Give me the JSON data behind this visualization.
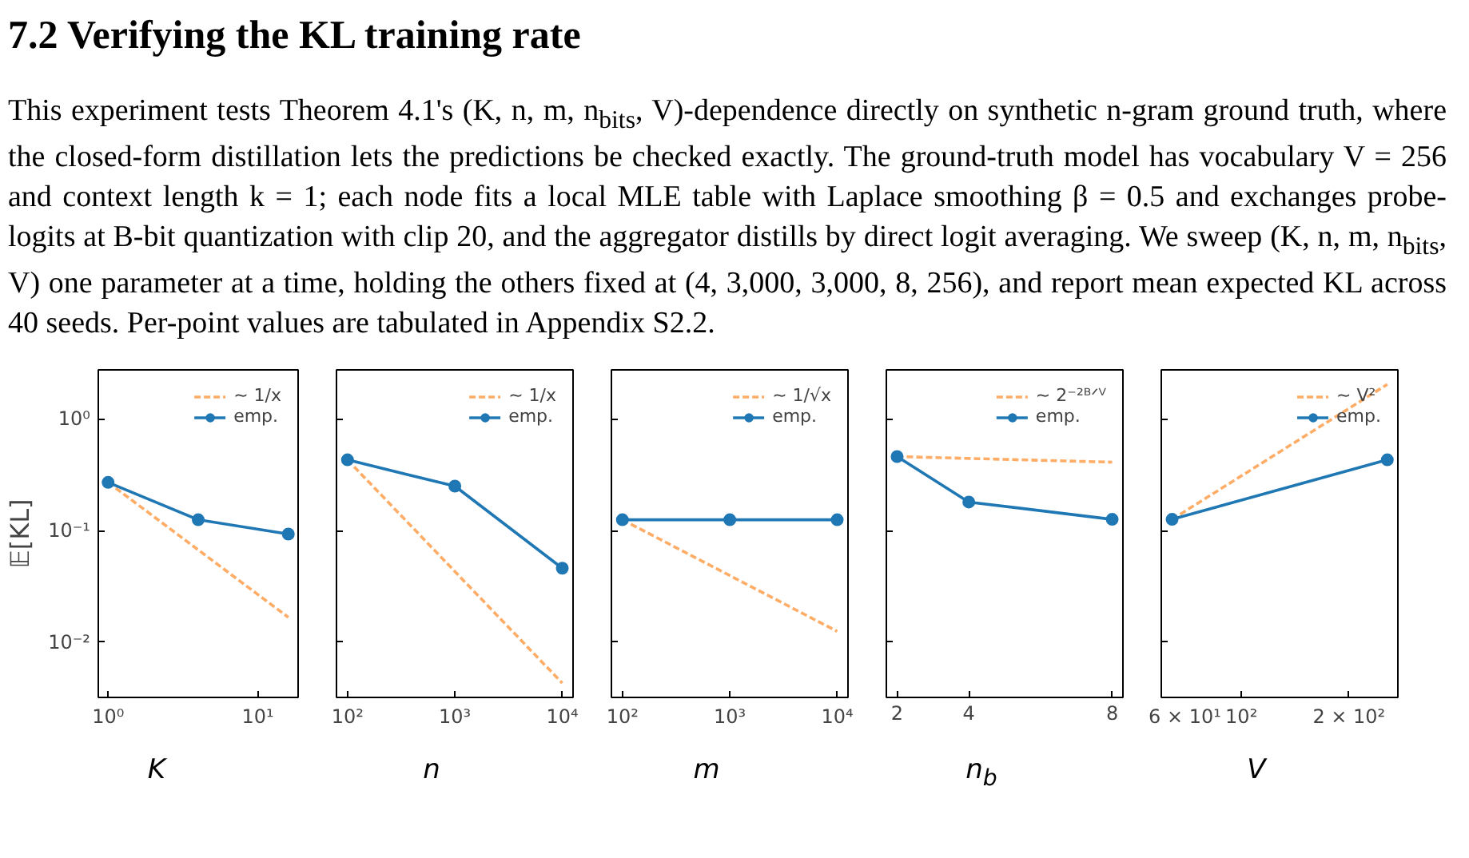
{
  "chart_data": [
    {
      "type": "line",
      "title": "7.2   Verifying the KL training rate",
      "annotations": [
        "This experiment tests Theorem 4.1's (K, n, m, n$_{bits}$, V)-dependence directly on synthetic n-gram ground truth, where the closed-form distillation lets the predictions be checked exactly. The ground-truth model has vocabulary V = 256 and context length k = 1; each node fits a local MLE table with Laplace smoothing β = 0.5 and exchanges probe-logits at B-bit quantization with clip 20, and the aggregator distills by direct logit averaging. We sweep (K, n, m, n$_{bits}$, V) one parameter at a time, holding the others fixed at (4, 3,000, 3,000, 8, 256), and report mean expected KL across 40 seeds. Per-point values are tabulated in Appendix S2.2."
      ],
      "xlabel": "K",
      "ylabel": "𝔼[KL]",
      "log": "xy",
      "grid": false,
      "legend": "top right",
      "xlim": [
        0.86,
        18.6
      ],
      "xticks": [
        {
          "value": 1,
          "label": "10⁰"
        },
        {
          "value": 10,
          "label": "10¹"
        }
      ],
      "ylim": [
        0.0032,
        2.75
      ],
      "yticks": [
        {
          "value": 0.01,
          "label": "10⁻²"
        },
        {
          "value": 0.1,
          "label": "10⁻¹"
        },
        {
          "value": 1,
          "label": "10⁰"
        }
      ],
      "series": [
        {
          "name": "~ 1/x",
          "color": "#ffad66",
          "line_style": "dashed",
          "marker": "none",
          "x": [
            1,
            16
          ],
          "values": [
            0.27,
            0.0167
          ]
        },
        {
          "name": "emp.",
          "color": "#1f77b4",
          "line_style": "solid",
          "marker": "circle",
          "x": [
            1,
            4,
            16
          ],
          "values": [
            0.27,
            0.125,
            0.093
          ]
        }
      ]
    },
    {
      "type": "line",
      "xlabel": "n",
      "log": "xy",
      "grid": false,
      "legend": "top right",
      "tick_labels": "x",
      "xlim": [
        79,
        12600
      ],
      "xticks": [
        {
          "value": 100,
          "label": "10²"
        },
        {
          "value": 1000,
          "label": "10³"
        },
        {
          "value": 10000,
          "label": "10⁴"
        }
      ],
      "ylim": [
        0.0032,
        2.75
      ],
      "yticks": [
        {
          "value": 0.01,
          "label": null
        },
        {
          "value": 0.1,
          "label": null
        },
        {
          "value": 1,
          "label": null
        }
      ],
      "series": [
        {
          "name": "~ 1/x",
          "color": "#ffad66",
          "line_style": "dashed",
          "marker": "none",
          "x": [
            100,
            10000
          ],
          "values": [
            0.43,
            0.0043
          ]
        },
        {
          "name": "emp.",
          "color": "#1f77b4",
          "line_style": "solid",
          "marker": "circle",
          "x": [
            100,
            1000,
            10000
          ],
          "values": [
            0.43,
            0.25,
            0.046
          ]
        }
      ]
    },
    {
      "type": "line",
      "xlabel": "m",
      "log": "xy",
      "grid": false,
      "legend": "top right",
      "tick_labels": "x",
      "xlim": [
        79,
        12600
      ],
      "xticks": [
        {
          "value": 100,
          "label": "10²"
        },
        {
          "value": 1000,
          "label": "10³"
        },
        {
          "value": 10000,
          "label": "10⁴"
        }
      ],
      "ylim": [
        0.0032,
        2.75
      ],
      "yticks": [
        {
          "value": 0.01,
          "label": null
        },
        {
          "value": 0.1,
          "label": null
        },
        {
          "value": 1,
          "label": null
        }
      ],
      "series": [
        {
          "name": "~ 1/√x",
          "color": "#ffad66",
          "line_style": "dashed",
          "marker": "none",
          "x": [
            100,
            10000
          ],
          "values": [
            0.125,
            0.0125
          ]
        },
        {
          "name": "emp.",
          "color": "#1f77b4",
          "line_style": "solid",
          "marker": "circle",
          "x": [
            100,
            1000,
            10000
          ],
          "values": [
            0.125,
            0.125,
            0.125
          ]
        }
      ]
    },
    {
      "type": "line",
      "xlabel": "n$_{b}$",
      "log": "y",
      "grid": false,
      "legend": "top right",
      "tick_labels": "x",
      "xlim": [
        1.7,
        8.3
      ],
      "xticks": [
        2,
        4,
        8
      ],
      "ylim": [
        0.0032,
        2.75
      ],
      "yticks": [
        {
          "value": 0.01,
          "label": null
        },
        {
          "value": 0.1,
          "label": null
        },
        {
          "value": 1,
          "label": null
        }
      ],
      "series": [
        {
          "name": "~ 2⁻²ᴮᐟⱽ",
          "color": "#ffad66",
          "line_style": "dashed",
          "marker": "none",
          "x": [
            2,
            8
          ],
          "values": [
            0.46,
            0.41
          ]
        },
        {
          "name": "emp.",
          "color": "#1f77b4",
          "line_style": "solid",
          "marker": "circle",
          "x": [
            2,
            4,
            8
          ],
          "values": [
            0.46,
            0.18,
            0.126
          ]
        }
      ]
    },
    {
      "type": "line",
      "xlabel": "V",
      "log": "xy",
      "grid": false,
      "legend": "top right",
      "tick_labels": "x",
      "xlim": [
        59.7,
        274
      ],
      "xticks": [
        {
          "value": 60,
          "label": "6 × 10¹"
        },
        {
          "value": 100,
          "label": "10²"
        },
        {
          "value": 200,
          "label": "2 × 10²"
        }
      ],
      "ylim": [
        0.0032,
        2.75
      ],
      "yticks": [
        {
          "value": 0.01,
          "label": null
        },
        {
          "value": 0.1,
          "label": null
        },
        {
          "value": 1,
          "label": null
        }
      ],
      "series": [
        {
          "name": "~ V²",
          "color": "#ffad66",
          "line_style": "dashed",
          "marker": "none",
          "x": [
            64,
            256
          ],
          "values": [
            0.126,
            2.04
          ]
        },
        {
          "name": "emp.",
          "color": "#1f77b4",
          "line_style": "solid",
          "marker": "circle",
          "x": [
            64,
            256
          ],
          "values": [
            0.126,
            0.43
          ]
        }
      ]
    }
  ]
}
